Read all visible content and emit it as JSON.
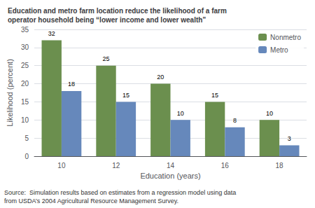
{
  "chart_data": {
    "type": "bar",
    "title": "Education and metro farm location reduce the likelihood of a farm\noperator household being “lower income and lower wealth”",
    "annotations": [
      "Source:  Simulation results based on estimates from a regression model using data\nfrom USDA’s 2004 Agricultural Resource Management Survey."
    ],
    "xlabel": "Education (years)",
    "ylabel": "Likelihood (percent)",
    "categories": [
      "10",
      "12",
      "14",
      "16",
      "18"
    ],
    "series": [
      {
        "name": "Nonmetro",
        "color": "#6b8f4e",
        "values": [
          32,
          25,
          20,
          15,
          10
        ]
      },
      {
        "name": "Metro",
        "color": "#6688bb",
        "values": [
          18,
          15,
          10,
          8,
          3
        ]
      }
    ],
    "ylim": [
      0,
      35
    ],
    "yticks": [
      0,
      5,
      10,
      15,
      20,
      25,
      30,
      35
    ],
    "grid": true,
    "legend": "upper right",
    "data_labels": true
  }
}
